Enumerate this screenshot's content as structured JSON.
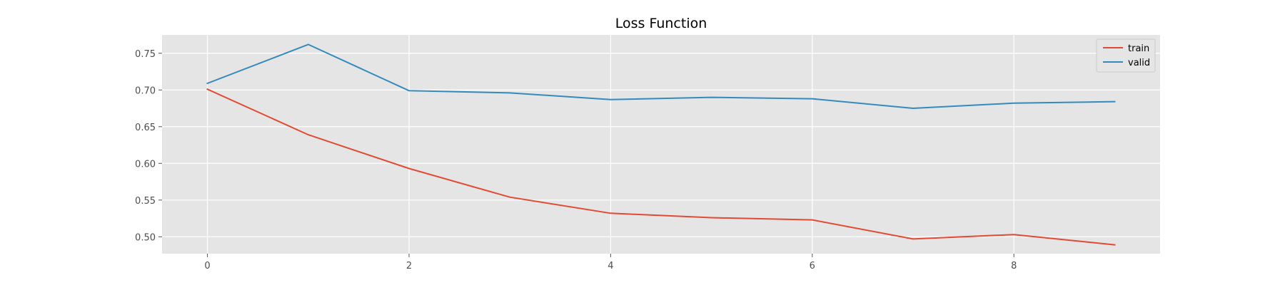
{
  "chart_data": {
    "type": "line",
    "title": "Loss Function",
    "xlabel": "",
    "ylabel": "",
    "x": [
      0,
      1,
      2,
      3,
      4,
      5,
      6,
      7,
      8,
      9
    ],
    "xlim": [
      -0.45,
      9.45
    ],
    "ylim": [
      0.477,
      0.775
    ],
    "xticks": [
      0,
      2,
      4,
      6,
      8
    ],
    "yticks": [
      0.5,
      0.55,
      0.6,
      0.65,
      0.7,
      0.75
    ],
    "grid": true,
    "legend_position": "top-right",
    "series": [
      {
        "name": "train",
        "color": "#E24A33",
        "values": [
          0.701,
          0.639,
          0.593,
          0.554,
          0.532,
          0.526,
          0.523,
          0.497,
          0.503,
          0.489
        ]
      },
      {
        "name": "valid",
        "color": "#348ABD",
        "values": [
          0.709,
          0.762,
          0.699,
          0.696,
          0.687,
          0.69,
          0.688,
          0.675,
          0.682,
          0.684
        ]
      }
    ]
  }
}
